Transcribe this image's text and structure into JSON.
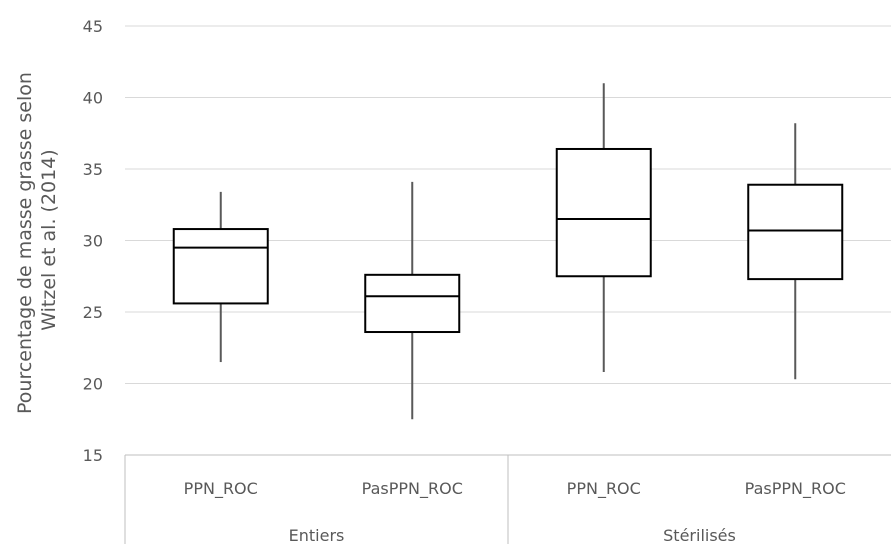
{
  "chart_data": {
    "type": "boxplot",
    "ylabel_lines": [
      "Pourcentage de masse grasse selon",
      "Witzel et al. (2014)"
    ],
    "ylim": [
      15,
      45
    ],
    "yticks": [
      15,
      20,
      25,
      30,
      35,
      40,
      45
    ],
    "grid": true,
    "groups": [
      {
        "label": "Entiers",
        "categories": [
          "PPN_ROC",
          "PasPPN_ROC"
        ]
      },
      {
        "label": "Stérilisés",
        "categories": [
          "PPN_ROC",
          "PasPPN_ROC"
        ]
      }
    ],
    "boxes": [
      {
        "group": "Entiers",
        "category": "PPN_ROC",
        "min": 21.5,
        "q1": 25.6,
        "median": 29.5,
        "q3": 30.8,
        "max": 33.4
      },
      {
        "group": "Entiers",
        "category": "PasPPN_ROC",
        "min": 17.5,
        "q1": 23.6,
        "median": 26.1,
        "q3": 27.6,
        "max": 34.1
      },
      {
        "group": "Stérilisés",
        "category": "PPN_ROC",
        "min": 20.8,
        "q1": 27.5,
        "median": 31.5,
        "q3": 36.4,
        "max": 41.0
      },
      {
        "group": "Stérilisés",
        "category": "PasPPN_ROC",
        "min": 20.3,
        "q1": 27.3,
        "median": 30.7,
        "q3": 33.9,
        "max": 38.2
      }
    ],
    "colors": {
      "box_stroke": "#000000",
      "whisker": "#595959",
      "grid": "#d9d9d9",
      "axis": "#bfbfbf",
      "text": "#595959"
    }
  }
}
